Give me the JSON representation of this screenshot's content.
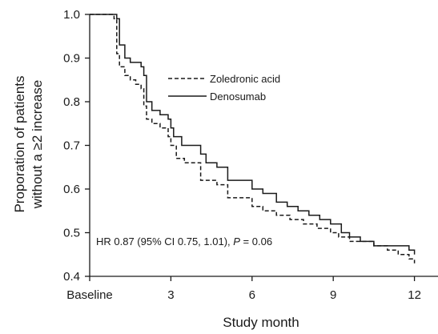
{
  "chart_data": {
    "type": "line",
    "step": true,
    "xlabel": "Study month",
    "ylabel": [
      "Proporation of patients",
      "without a ≥2 increase"
    ],
    "x_ticks": [
      {
        "value": 0,
        "label": "Baseline"
      },
      {
        "value": 3,
        "label": "3"
      },
      {
        "value": 6,
        "label": "6"
      },
      {
        "value": 9,
        "label": "9"
      },
      {
        "value": 12,
        "label": "12"
      }
    ],
    "y_ticks": [
      "0.4",
      "0.5",
      "0.6",
      "0.7",
      "0.8",
      "0.9",
      "1.0"
    ],
    "xlim": [
      0,
      12.9
    ],
    "ylim": [
      0.4,
      1.0
    ],
    "grid": false,
    "legend_position": "top-right",
    "series": [
      {
        "name": "Zoledronic acid",
        "line_style": "dashed",
        "color": "#1a1a1a",
        "points": [
          [
            0,
            1.0
          ],
          [
            0.7,
            1.0
          ],
          [
            0.9,
            0.99
          ],
          [
            1.0,
            0.91
          ],
          [
            1.1,
            0.88
          ],
          [
            1.3,
            0.86
          ],
          [
            1.5,
            0.85
          ],
          [
            1.7,
            0.84
          ],
          [
            1.9,
            0.83
          ],
          [
            2.0,
            0.79
          ],
          [
            2.1,
            0.76
          ],
          [
            2.3,
            0.75
          ],
          [
            2.6,
            0.74
          ],
          [
            2.9,
            0.72
          ],
          [
            3.0,
            0.7
          ],
          [
            3.2,
            0.67
          ],
          [
            3.5,
            0.66
          ],
          [
            4.0,
            0.66
          ],
          [
            4.1,
            0.62
          ],
          [
            4.4,
            0.62
          ],
          [
            4.7,
            0.61
          ],
          [
            5.0,
            0.61
          ],
          [
            5.1,
            0.58
          ],
          [
            5.6,
            0.58
          ],
          [
            6.0,
            0.56
          ],
          [
            6.4,
            0.55
          ],
          [
            6.9,
            0.54
          ],
          [
            7.4,
            0.53
          ],
          [
            7.9,
            0.52
          ],
          [
            8.4,
            0.51
          ],
          [
            8.9,
            0.5
          ],
          [
            9.2,
            0.49
          ],
          [
            9.6,
            0.48
          ],
          [
            10.1,
            0.48
          ],
          [
            10.5,
            0.47
          ],
          [
            11.0,
            0.46
          ],
          [
            11.4,
            0.45
          ],
          [
            11.8,
            0.44
          ],
          [
            12.0,
            0.43
          ]
        ]
      },
      {
        "name": "Denosumab",
        "line_style": "solid",
        "color": "#1a1a1a",
        "points": [
          [
            0,
            1.0
          ],
          [
            0.7,
            1.0
          ],
          [
            1.0,
            0.99
          ],
          [
            1.1,
            0.93
          ],
          [
            1.3,
            0.9
          ],
          [
            1.5,
            0.89
          ],
          [
            1.9,
            0.88
          ],
          [
            2.0,
            0.86
          ],
          [
            2.1,
            0.8
          ],
          [
            2.3,
            0.78
          ],
          [
            2.6,
            0.77
          ],
          [
            2.9,
            0.76
          ],
          [
            3.0,
            0.74
          ],
          [
            3.1,
            0.72
          ],
          [
            3.4,
            0.7
          ],
          [
            4.0,
            0.7
          ],
          [
            4.1,
            0.68
          ],
          [
            4.3,
            0.66
          ],
          [
            4.7,
            0.65
          ],
          [
            5.0,
            0.65
          ],
          [
            5.1,
            0.62
          ],
          [
            5.5,
            0.62
          ],
          [
            6.0,
            0.6
          ],
          [
            6.4,
            0.59
          ],
          [
            6.9,
            0.57
          ],
          [
            7.3,
            0.56
          ],
          [
            7.7,
            0.55
          ],
          [
            8.1,
            0.54
          ],
          [
            8.5,
            0.53
          ],
          [
            8.9,
            0.52
          ],
          [
            9.3,
            0.5
          ],
          [
            9.6,
            0.49
          ],
          [
            10.0,
            0.48
          ],
          [
            10.5,
            0.47
          ],
          [
            11.0,
            0.47
          ],
          [
            11.4,
            0.47
          ],
          [
            11.8,
            0.46
          ],
          [
            12.0,
            0.45
          ]
        ]
      }
    ],
    "annotation": {
      "text_prefix": "HR 0.87 (95% CI 0.75, 1.01), ",
      "p_symbol": "P",
      "p_value": " = 0.06"
    }
  }
}
